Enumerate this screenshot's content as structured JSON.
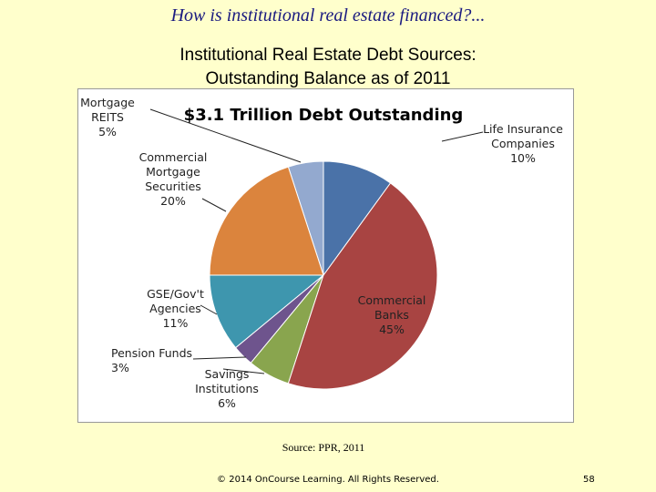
{
  "slide": {
    "title": "How is institutional real estate financed?...",
    "subtitle_lines": [
      "Institutional Real Estate Debt Sources:",
      "Outstanding Balance as of 2011"
    ],
    "source": "Source: PPR, 2011",
    "copyright": "© 2014 OnCourse Learning. All Rights Reserved.",
    "page_number": "58"
  },
  "chart_data": {
    "type": "pie",
    "title": "$3.1 Trillion Debt Outstanding",
    "categories": [
      "Life Insurance Companies",
      "Commercial Banks",
      "Savings Institutions",
      "Pension Funds",
      "GSE/Gov't Agencies",
      "Commercial Mortgage Securities",
      "Mortgage REITS"
    ],
    "values": [
      10,
      45,
      6,
      3,
      11,
      20,
      5
    ],
    "value_labels": [
      "10%",
      "45%",
      "6%",
      "3%",
      "11%",
      "20%",
      "5%"
    ],
    "colors": [
      "#4a72a8",
      "#a84442",
      "#89a54e",
      "#6e548d",
      "#3e96ae",
      "#db843d",
      "#93a9cf"
    ]
  }
}
